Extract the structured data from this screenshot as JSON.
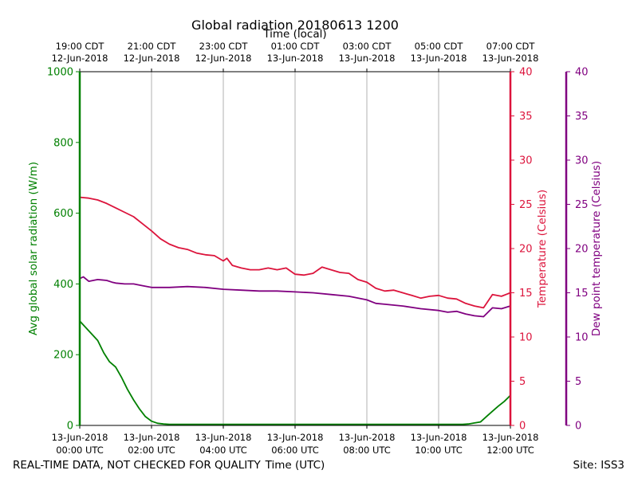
{
  "chart_data": {
    "type": "line",
    "title": "Global radiation 20180613 1200",
    "top_axis_label": "Time (local)",
    "xlabel": "Time (UTC)",
    "ylabel_left": "Avg global solar radiation (W/m)",
    "ylabel_right1": "Temperature (Celsius)",
    "ylabel_right2": "Dew point temperature (Celsius)",
    "footer_left": "REAL-TIME DATA, NOT CHECKED FOR QUALITY",
    "footer_right": "Site: ISS3",
    "xlim_hours": [
      0,
      12
    ],
    "ylim_left": [
      0,
      1000
    ],
    "ylim_right": [
      0,
      40
    ],
    "y_left_ticks": [
      "0",
      "200",
      "400",
      "600",
      "800",
      "1000"
    ],
    "y_right_ticks": [
      "0",
      "5",
      "10",
      "15",
      "20",
      "25",
      "30",
      "35",
      "40"
    ],
    "bottom_ticks": [
      {
        "hour": 0,
        "line1": "13-Jun-2018",
        "line2": "00:00 UTC"
      },
      {
        "hour": 2,
        "line1": "13-Jun-2018",
        "line2": "02:00 UTC"
      },
      {
        "hour": 4,
        "line1": "13-Jun-2018",
        "line2": "04:00 UTC"
      },
      {
        "hour": 6,
        "line1": "13-Jun-2018",
        "line2": "06:00 UTC"
      },
      {
        "hour": 8,
        "line1": "13-Jun-2018",
        "line2": "08:00 UTC"
      },
      {
        "hour": 10,
        "line1": "13-Jun-2018",
        "line2": "10:00 UTC"
      },
      {
        "hour": 12,
        "line1": "13-Jun-2018",
        "line2": "12:00 UTC"
      }
    ],
    "top_ticks": [
      {
        "hour": 0,
        "line1": "19:00 CDT",
        "line2": "12-Jun-2018"
      },
      {
        "hour": 2,
        "line1": "21:00 CDT",
        "line2": "12-Jun-2018"
      },
      {
        "hour": 4,
        "line1": "23:00 CDT",
        "line2": "12-Jun-2018"
      },
      {
        "hour": 6,
        "line1": "01:00 CDT",
        "line2": "13-Jun-2018"
      },
      {
        "hour": 8,
        "line1": "03:00 CDT",
        "line2": "13-Jun-2018"
      },
      {
        "hour": 10,
        "line1": "05:00 CDT",
        "line2": "13-Jun-2018"
      },
      {
        "hour": 12,
        "line1": "07:00 CDT",
        "line2": "13-Jun-2018"
      }
    ],
    "colors": {
      "radiation": "#008000",
      "temperature": "#dc143c",
      "dewpoint": "#800080",
      "grid": "#b0b0b0"
    },
    "series": [
      {
        "name": "Avg global solar radiation",
        "axis": "left",
        "x": [
          0,
          0.5,
          0.67,
          0.83,
          1.0,
          1.17,
          1.33,
          1.5,
          1.67,
          1.83,
          2.0,
          2.17,
          2.33,
          2.5,
          3,
          4,
          5,
          6,
          7,
          8,
          9,
          10,
          10.5,
          10.67,
          10.83,
          11.0,
          11.17,
          11.33,
          11.5,
          11.67,
          11.83,
          12.0
        ],
        "values": [
          295,
          240,
          205,
          180,
          165,
          135,
          102,
          72,
          46,
          25,
          12,
          6,
          4,
          3,
          3,
          3,
          3,
          3,
          3,
          3,
          3,
          3,
          3,
          3,
          4,
          7,
          10,
          25,
          40,
          55,
          68,
          85
        ]
      },
      {
        "name": "Temperature",
        "axis": "right",
        "x": [
          0,
          0.25,
          0.5,
          0.75,
          1.0,
          1.25,
          1.5,
          1.75,
          2.0,
          2.25,
          2.5,
          2.75,
          3.0,
          3.25,
          3.5,
          3.75,
          4.0,
          4.1,
          4.25,
          4.5,
          4.75,
          5.0,
          5.25,
          5.5,
          5.75,
          6.0,
          6.25,
          6.5,
          6.75,
          7.0,
          7.25,
          7.5,
          7.75,
          8.0,
          8.25,
          8.5,
          8.75,
          9.0,
          9.25,
          9.5,
          9.75,
          10.0,
          10.25,
          10.5,
          10.75,
          11.0,
          11.25,
          11.5,
          11.75,
          12.0
        ],
        "values": [
          25.8,
          25.7,
          25.5,
          25.1,
          24.6,
          24.1,
          23.6,
          22.8,
          22.0,
          21.1,
          20.5,
          20.1,
          19.9,
          19.5,
          19.3,
          19.2,
          18.6,
          18.9,
          18.1,
          17.8,
          17.6,
          17.6,
          17.8,
          17.6,
          17.8,
          17.1,
          17.0,
          17.2,
          17.9,
          17.6,
          17.3,
          17.2,
          16.5,
          16.2,
          15.5,
          15.2,
          15.3,
          15.0,
          14.7,
          14.4,
          14.6,
          14.7,
          14.4,
          14.3,
          13.8,
          13.5,
          13.3,
          14.8,
          14.6,
          15.0
        ]
      },
      {
        "name": "Dew point temperature",
        "axis": "right",
        "x": [
          0,
          0.1,
          0.25,
          0.5,
          0.75,
          0.9,
          1.0,
          1.25,
          1.5,
          1.75,
          2.0,
          2.5,
          3.0,
          3.5,
          4.0,
          4.5,
          5.0,
          5.5,
          6.0,
          6.5,
          7.0,
          7.5,
          8.0,
          8.25,
          8.5,
          9.0,
          9.5,
          10.0,
          10.25,
          10.5,
          10.75,
          11.0,
          11.25,
          11.5,
          11.75,
          12.0
        ],
        "values": [
          16.6,
          16.8,
          16.3,
          16.5,
          16.4,
          16.2,
          16.1,
          16.0,
          16.0,
          15.8,
          15.6,
          15.6,
          15.7,
          15.6,
          15.4,
          15.3,
          15.2,
          15.2,
          15.1,
          15.0,
          14.8,
          14.6,
          14.2,
          13.8,
          13.7,
          13.5,
          13.2,
          13.0,
          12.8,
          12.9,
          12.6,
          12.4,
          12.3,
          13.3,
          13.2,
          13.5
        ]
      }
    ]
  }
}
